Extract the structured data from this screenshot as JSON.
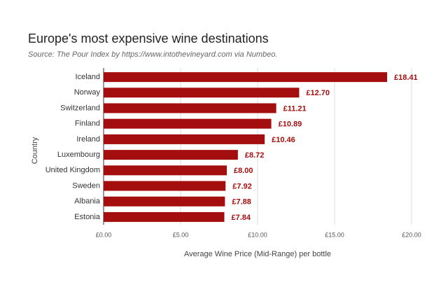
{
  "chart_data": {
    "type": "bar",
    "orientation": "horizontal",
    "title": "Europe's most expensive wine destinations",
    "subtitle": "Source: The Pour Index by https://www.intothevineyard.com via Numbeo.",
    "x_label": "Average Wine Price (Mid-Range) per bottle",
    "y_label": "Country",
    "categories": [
      "Iceland",
      "Norway",
      "Switzerland",
      "Finland",
      "Ireland",
      "Luxembourg",
      "United Kingdom",
      "Sweden",
      "Albania",
      "Estonia"
    ],
    "values": [
      18.41,
      12.7,
      11.21,
      10.89,
      10.46,
      8.72,
      8.0,
      7.92,
      7.88,
      7.84
    ],
    "value_labels": [
      "£18.41",
      "£12.70",
      "£11.21",
      "£10.89",
      "£10.46",
      "£8.72",
      "£8.00",
      "£7.92",
      "£7.88",
      "£7.84"
    ],
    "color": "#a50e0e",
    "xlim": [
      0,
      20
    ],
    "xticks": [
      {
        "value": 0,
        "label": "£0.00"
      },
      {
        "value": 5,
        "label": "£5.00"
      },
      {
        "value": 10,
        "label": "£10.00"
      },
      {
        "value": 15,
        "label": "£15.00"
      },
      {
        "value": 20,
        "label": "£20.00"
      }
    ],
    "grid": true
  }
}
